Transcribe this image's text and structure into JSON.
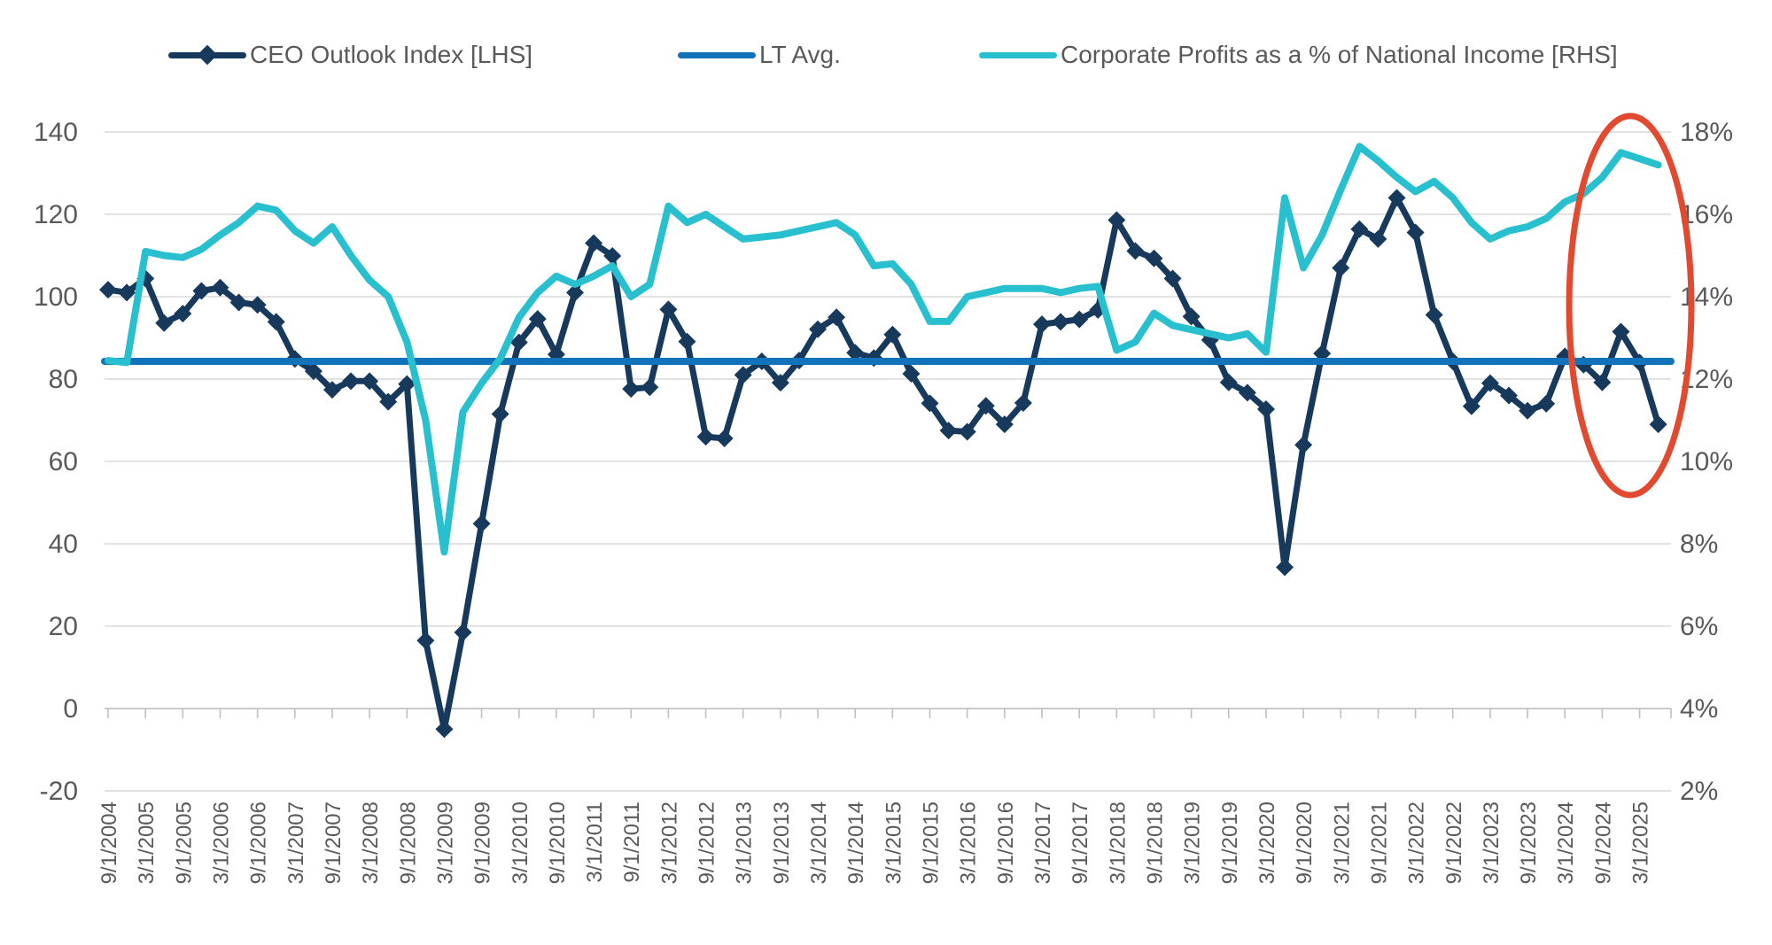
{
  "colors": {
    "ceo_line": "#17395C",
    "lt_avg_line": "#1272BA",
    "profits_line": "#28C0CE",
    "gridline": "#D9D9D9",
    "axis_line": "#BFBFBF",
    "axis_text": "#595959",
    "annotation_ellipse": "#E2492F",
    "background": "#FFFFFF"
  },
  "legend": [
    {
      "label": "CEO Outlook Index [LHS]",
      "series": "ceo",
      "marker": "line-with-diamond"
    },
    {
      "label": "LT Avg.",
      "series": "lt_avg",
      "marker": "line"
    },
    {
      "label": "Corporate Profits as a % of National Income [RHS]",
      "series": "profits",
      "marker": "line"
    }
  ],
  "chart_data": {
    "type": "line",
    "title": "",
    "frequency": "quarterly",
    "x_labels": [
      "9/1/2004",
      "3/1/2005",
      "9/1/2005",
      "3/1/2006",
      "9/1/2006",
      "3/1/2007",
      "9/1/2007",
      "3/1/2008",
      "9/1/2008",
      "3/1/2009",
      "9/1/2009",
      "3/1/2010",
      "9/1/2010",
      "3/1/2011",
      "9/1/2011",
      "3/1/2012",
      "9/1/2012",
      "3/1/2013",
      "9/1/2013",
      "3/1/2014",
      "9/1/2014",
      "3/1/2015",
      "9/1/2015",
      "3/1/2016",
      "9/1/2016",
      "3/1/2017",
      "9/1/2017",
      "3/1/2018",
      "9/1/2018",
      "3/1/2019",
      "9/1/2019",
      "3/1/2020",
      "9/1/2020",
      "3/1/2021",
      "9/1/2021",
      "3/1/2022",
      "9/1/2022",
      "3/1/2023",
      "9/1/2023",
      "3/1/2024",
      "9/1/2024",
      "3/1/2025"
    ],
    "left_axis": {
      "ticks": [
        140,
        120,
        100,
        80,
        60,
        40,
        20,
        0,
        -20
      ],
      "min": -20,
      "max": 140
    },
    "right_axis": {
      "ticks": [
        "18%",
        "16%",
        "14%",
        "12%",
        "10%",
        "8%",
        "6%",
        "4%",
        "2%"
      ],
      "min": 2,
      "max": 18
    },
    "grid": "horizontal-only",
    "legend_position": "top",
    "series": [
      {
        "name": "CEO Outlook Index [LHS]",
        "axis": "left",
        "marker": "diamond",
        "values": [
          101.7,
          101.0,
          104.4,
          93.6,
          95.9,
          101.4,
          102.2,
          98.6,
          98.0,
          93.9,
          84.9,
          81.9,
          77.4,
          79.5,
          79.5,
          74.5,
          78.8,
          16.5,
          -5.0,
          18.5,
          44.9,
          71.5,
          88.9,
          94.6,
          86.0,
          101.0,
          113.0,
          109.9,
          77.6,
          78.0,
          96.9,
          89.1,
          66.0,
          65.6,
          81.0,
          84.3,
          79.1,
          84.5,
          92.1,
          95.0,
          86.4,
          85.1,
          90.8,
          81.3,
          74.1,
          67.5,
          67.2,
          73.5,
          69.0,
          74.2,
          93.3,
          93.9,
          94.5,
          96.8,
          118.6,
          111.1,
          109.3,
          104.4,
          95.2,
          89.5,
          79.2,
          76.7,
          72.7,
          34.3,
          64.0,
          86.2,
          107.0,
          116.4,
          114.0,
          124.0,
          115.6,
          95.6,
          84.3,
          73.4,
          79.0,
          76.0,
          72.3,
          74.0,
          85.5,
          83.5,
          79.2,
          91.5,
          84.0,
          69.0
        ]
      },
      {
        "name": "LT Avg.",
        "axis": "left",
        "type": "constant",
        "value": 84.3
      },
      {
        "name": "Corporate Profits as a % of National Income [RHS]",
        "axis": "right",
        "values": [
          12.45,
          12.4,
          15.1,
          15.0,
          14.95,
          15.15,
          15.5,
          15.8,
          16.2,
          16.1,
          15.6,
          15.3,
          15.7,
          15.0,
          14.4,
          14.0,
          12.9,
          11.0,
          7.8,
          11.2,
          11.9,
          12.5,
          13.5,
          14.1,
          14.5,
          14.3,
          14.5,
          14.75,
          14.0,
          14.3,
          16.2,
          15.8,
          16.0,
          15.7,
          15.4,
          15.45,
          15.5,
          15.6,
          15.7,
          15.8,
          15.5,
          14.75,
          14.8,
          14.3,
          13.4,
          13.4,
          14.0,
          14.1,
          14.2,
          14.2,
          14.2,
          14.1,
          14.2,
          14.25,
          12.7,
          12.9,
          13.6,
          13.3,
          13.2,
          13.1,
          13.0,
          13.1,
          12.65,
          16.4,
          14.7,
          15.5,
          16.6,
          17.65,
          17.3,
          16.9,
          16.55,
          16.8,
          16.4,
          15.8,
          15.4,
          15.6,
          15.7,
          15.9,
          16.3,
          16.5,
          16.9,
          17.5,
          17.35,
          17.2
        ]
      }
    ],
    "annotation": {
      "type": "ellipse",
      "meaning": "highlights the most recent readings"
    }
  }
}
